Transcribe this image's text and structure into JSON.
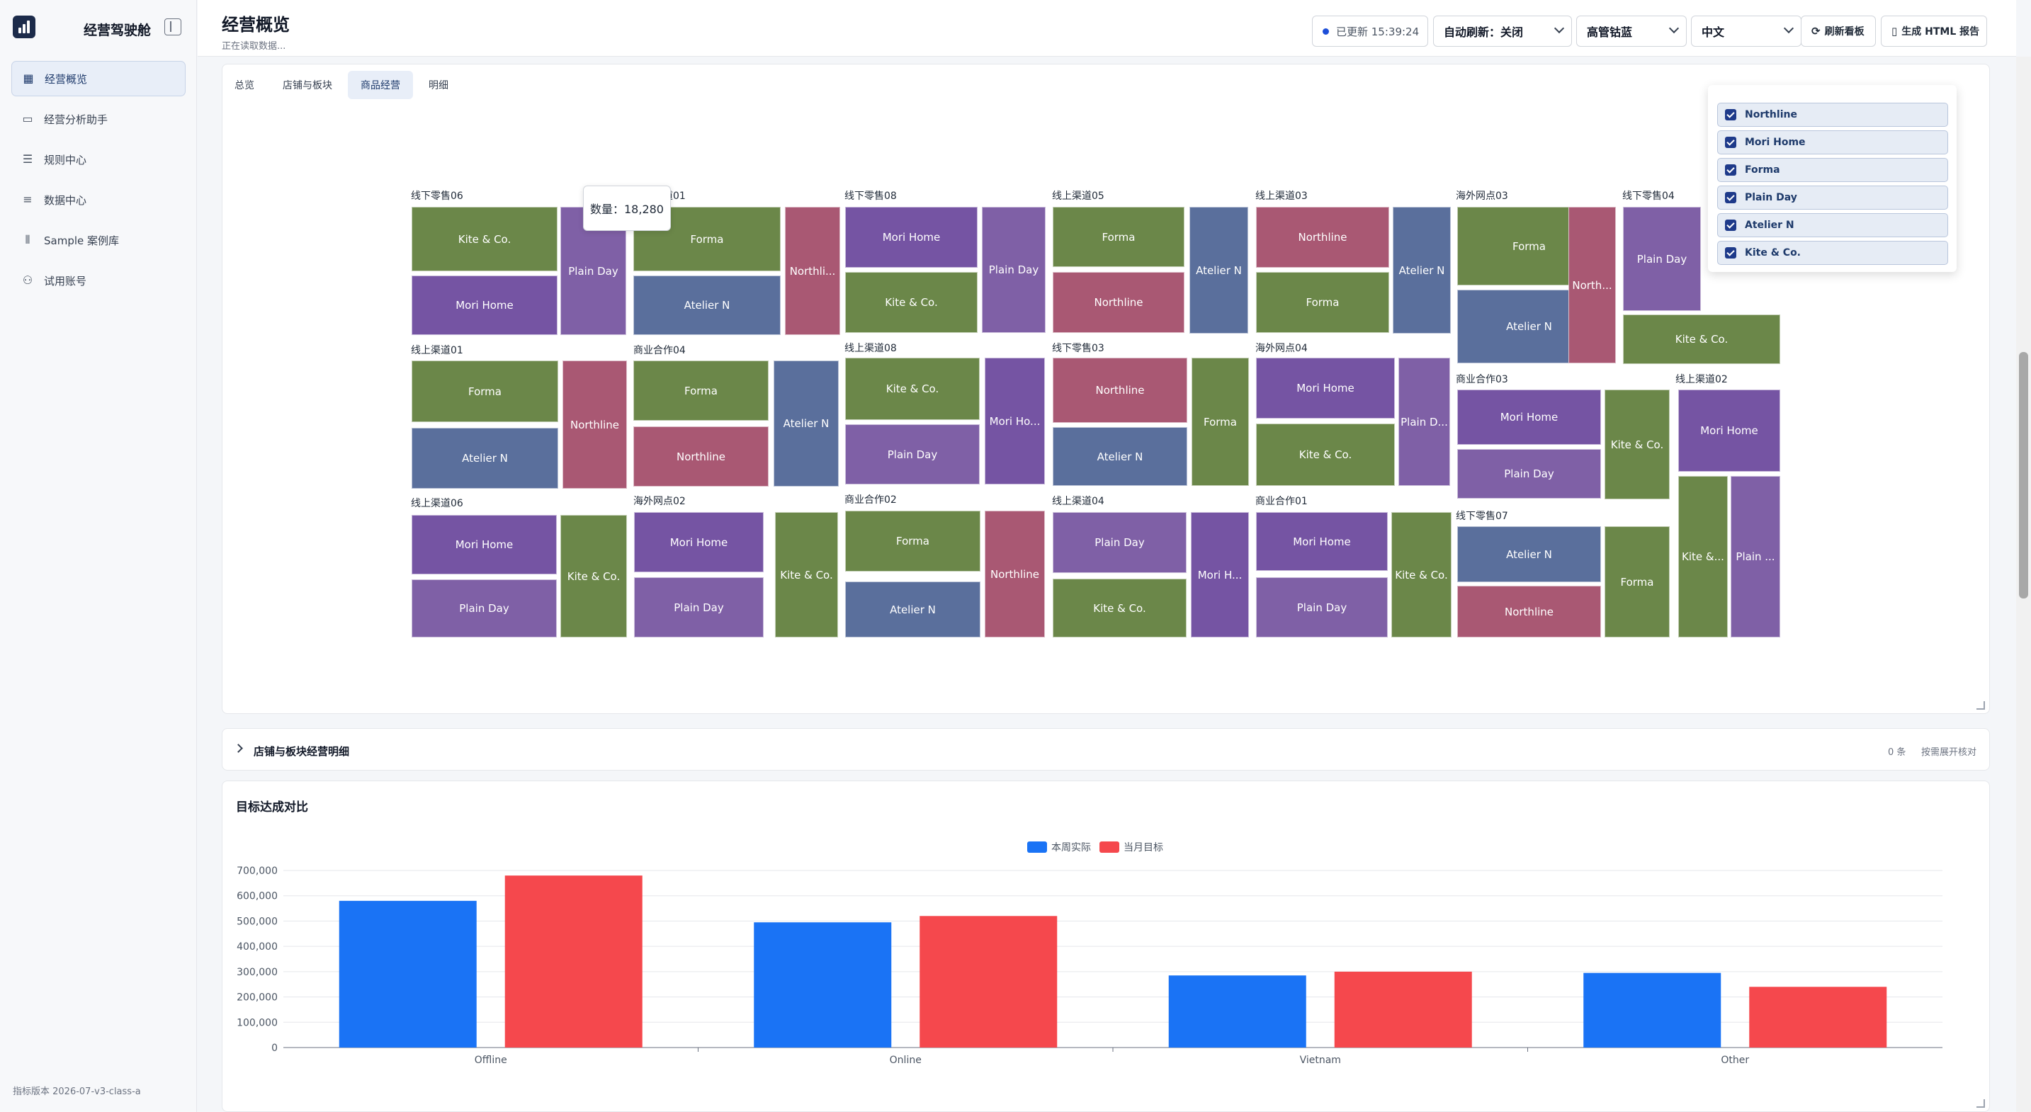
{
  "sidebar": {
    "brand": "经营驾驶舱",
    "items": [
      {
        "label": "经营概览",
        "icon": "dashboard-icon",
        "active": true
      },
      {
        "label": "经营分析助手",
        "icon": "chat-icon",
        "active": false
      },
      {
        "label": "规则中心",
        "icon": "sliders-icon",
        "active": false
      },
      {
        "label": "数据中心",
        "icon": "database-icon",
        "active": false
      },
      {
        "label": "Sample 案例库",
        "icon": "library-icon",
        "active": false
      },
      {
        "label": "试用账号",
        "icon": "users-icon",
        "active": false
      }
    ],
    "version": "指标版本 2026-07-v3-class-a"
  },
  "header": {
    "title": "经营概览",
    "subtitle": "正在读取数据...",
    "updated": "已更新 15:39:24",
    "auto_refresh": "自动刷新：关闭",
    "theme": "高管钴蓝",
    "language": "中文",
    "refresh_button": "刷新看板",
    "report_button": "生成 HTML 报告"
  },
  "tabs": [
    "总览",
    "店铺与板块",
    "商品经营",
    "明细"
  ],
  "active_tab": "商品经营",
  "tooltip": "数量：18,280",
  "brand_colors": {
    "Kite & Co.": "#6b8749",
    "Mori Home": "#7554a3",
    "Plain Day": "#7f60a6",
    "Forma": "#6b8749",
    "Atelier N": "#5a6f9c",
    "Northline": "#a95873"
  },
  "legend_items": [
    "Northline",
    "Mori Home",
    "Forma",
    "Plain Day",
    "Atelier N",
    "Kite & Co."
  ],
  "treemap": [
    {
      "group": "线下零售06",
      "cells": [
        "Kite & Co.",
        "Mori Home",
        "Plain Day"
      ]
    },
    {
      "group": "线上渠道01",
      "cells": [
        "Forma",
        "Atelier N",
        "Northli..."
      ]
    },
    {
      "group": "线下零售08",
      "cells": [
        "Mori Home",
        "Kite & Co.",
        "Plain Day"
      ]
    },
    {
      "group": "线上渠道05",
      "cells": [
        "Forma",
        "Northline",
        "Atelier N"
      ]
    },
    {
      "group": "线上渠道03",
      "cells": [
        "Northline",
        "Forma",
        "Atelier N"
      ]
    },
    {
      "group": "海外网点03",
      "cells": [
        "Forma",
        "Atelier N",
        "North..."
      ]
    },
    {
      "group": "线下零售04",
      "cells": [
        "Plain Day",
        "Kite & Co."
      ]
    },
    {
      "group": "线上渠道01",
      "cells": [
        "Forma",
        "Atelier N",
        "Northline"
      ]
    },
    {
      "group": "商业合作04",
      "cells": [
        "Forma",
        "Northline",
        "Atelier N"
      ]
    },
    {
      "group": "线上渠道08",
      "cells": [
        "Kite & Co.",
        "Plain Day",
        "Mori Ho..."
      ]
    },
    {
      "group": "线下零售03",
      "cells": [
        "Northline",
        "Atelier N",
        "Forma"
      ]
    },
    {
      "group": "海外网点04",
      "cells": [
        "Mori Home",
        "Kite & Co.",
        "Plain D..."
      ]
    },
    {
      "group": "商业合作03",
      "cells": [
        "Mori Home",
        "Plain Day",
        "Kite & Co."
      ]
    },
    {
      "group": "线上渠道02",
      "cells": [
        "Mori Home",
        "Kite &...",
        "Plain ..."
      ]
    },
    {
      "group": "线上渠道06",
      "cells": [
        "Mori Home",
        "Plain Day",
        "Kite & Co."
      ]
    },
    {
      "group": "海外网点02",
      "cells": [
        "Mori Home",
        "Plain Day",
        "Kite & Co."
      ]
    },
    {
      "group": "商业合作02",
      "cells": [
        "Forma",
        "Atelier N",
        "Northline"
      ]
    },
    {
      "group": "线上渠道04",
      "cells": [
        "Plain Day",
        "Kite & Co.",
        "Mori H..."
      ]
    },
    {
      "group": "商业合作01",
      "cells": [
        "Mori Home",
        "Plain Day",
        "Kite & Co."
      ]
    },
    {
      "group": "线下零售07",
      "cells": [
        "Atelier N",
        "Northline",
        "Forma"
      ]
    }
  ],
  "detail": {
    "title": "店铺与板块经营明细",
    "count": "0 条",
    "hint": "按需展开核对"
  },
  "target_chart": {
    "title": "目标达成对比"
  },
  "chart_data": {
    "type": "bar",
    "categories": [
      "Offline",
      "Online",
      "Vietnam",
      "Other"
    ],
    "series": [
      {
        "name": "本周实际",
        "color": "#1a73f5",
        "values": [
          580000,
          495000,
          285000,
          295000
        ]
      },
      {
        "name": "当月目标",
        "color": "#f5484d",
        "values": [
          680000,
          520000,
          300000,
          240000
        ]
      }
    ],
    "ylim": [
      0,
      700000
    ],
    "yticks": [
      "0",
      "100,000",
      "200,000",
      "300,000",
      "400,000",
      "500,000",
      "600,000",
      "700,000"
    ],
    "legend": "top-center",
    "grid": true
  }
}
